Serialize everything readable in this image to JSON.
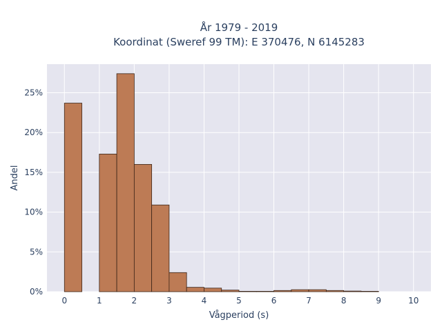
{
  "chart_data": {
    "type": "bar",
    "title_lines": [
      "År 1979 - 2019",
      "Koordinat (Sweref 99 TM): E 370476, N 6145283"
    ],
    "xlabel": "Vågperiod (s)",
    "ylabel": "Andel",
    "xlim": [
      -0.5,
      10.5
    ],
    "ylim": [
      0,
      28.6
    ],
    "x_ticks": [
      0,
      1,
      2,
      3,
      4,
      5,
      6,
      7,
      8,
      9,
      10
    ],
    "x_tick_labels": [
      "0",
      "1",
      "2",
      "3",
      "4",
      "5",
      "6",
      "7",
      "8",
      "9",
      "10"
    ],
    "y_ticks": [
      0,
      5,
      10,
      15,
      20,
      25
    ],
    "y_tick_labels": [
      "0%",
      "5%",
      "10%",
      "15%",
      "20%",
      "25%"
    ],
    "bin_width": 0.5,
    "bins": [
      {
        "start": 0.0,
        "value": 23.7
      },
      {
        "start": 1.0,
        "value": 17.3
      },
      {
        "start": 1.5,
        "value": 27.4
      },
      {
        "start": 2.0,
        "value": 16.0
      },
      {
        "start": 2.5,
        "value": 10.9
      },
      {
        "start": 3.0,
        "value": 2.4
      },
      {
        "start": 3.5,
        "value": 0.55
      },
      {
        "start": 4.0,
        "value": 0.45
      },
      {
        "start": 4.5,
        "value": 0.2
      },
      {
        "start": 5.0,
        "value": 0.05
      },
      {
        "start": 5.5,
        "value": 0.05
      },
      {
        "start": 6.0,
        "value": 0.15
      },
      {
        "start": 6.5,
        "value": 0.25
      },
      {
        "start": 7.0,
        "value": 0.25
      },
      {
        "start": 7.5,
        "value": 0.15
      },
      {
        "start": 8.0,
        "value": 0.08
      },
      {
        "start": 8.5,
        "value": 0.05
      }
    ],
    "bar_color": "#bd7b55",
    "bar_edge_color": "#3a2418",
    "plot_bg": "#e5e5ef",
    "grid": true,
    "grid_color": "#ffffff"
  }
}
